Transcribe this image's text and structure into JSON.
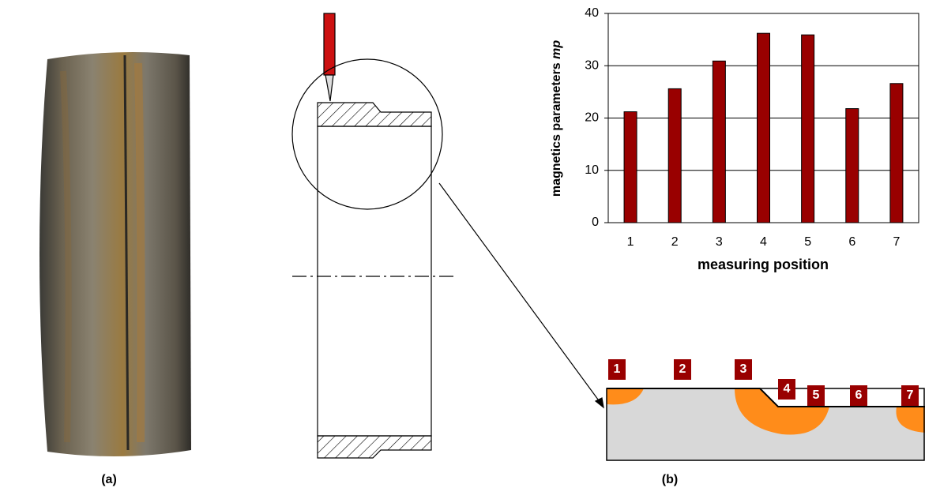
{
  "chart_data": {
    "type": "bar",
    "ylabel": "magnetics parameters ",
    "ylabel_symbol": "mp",
    "xlabel": "measuring position",
    "categories": [
      "1",
      "2",
      "3",
      "4",
      "5",
      "6",
      "7"
    ],
    "values": [
      21.2,
      25.6,
      30.9,
      36.2,
      35.9,
      21.8,
      26.6
    ],
    "color": "#990000",
    "ylim": [
      0,
      40
    ],
    "yticks": [
      0,
      10,
      20,
      30,
      40
    ],
    "grid": true
  },
  "panels": {
    "a": "(a)",
    "b": "(b)"
  },
  "diagram": {
    "markers": [
      "1",
      "2",
      "3",
      "4",
      "5",
      "6",
      "7"
    ]
  }
}
